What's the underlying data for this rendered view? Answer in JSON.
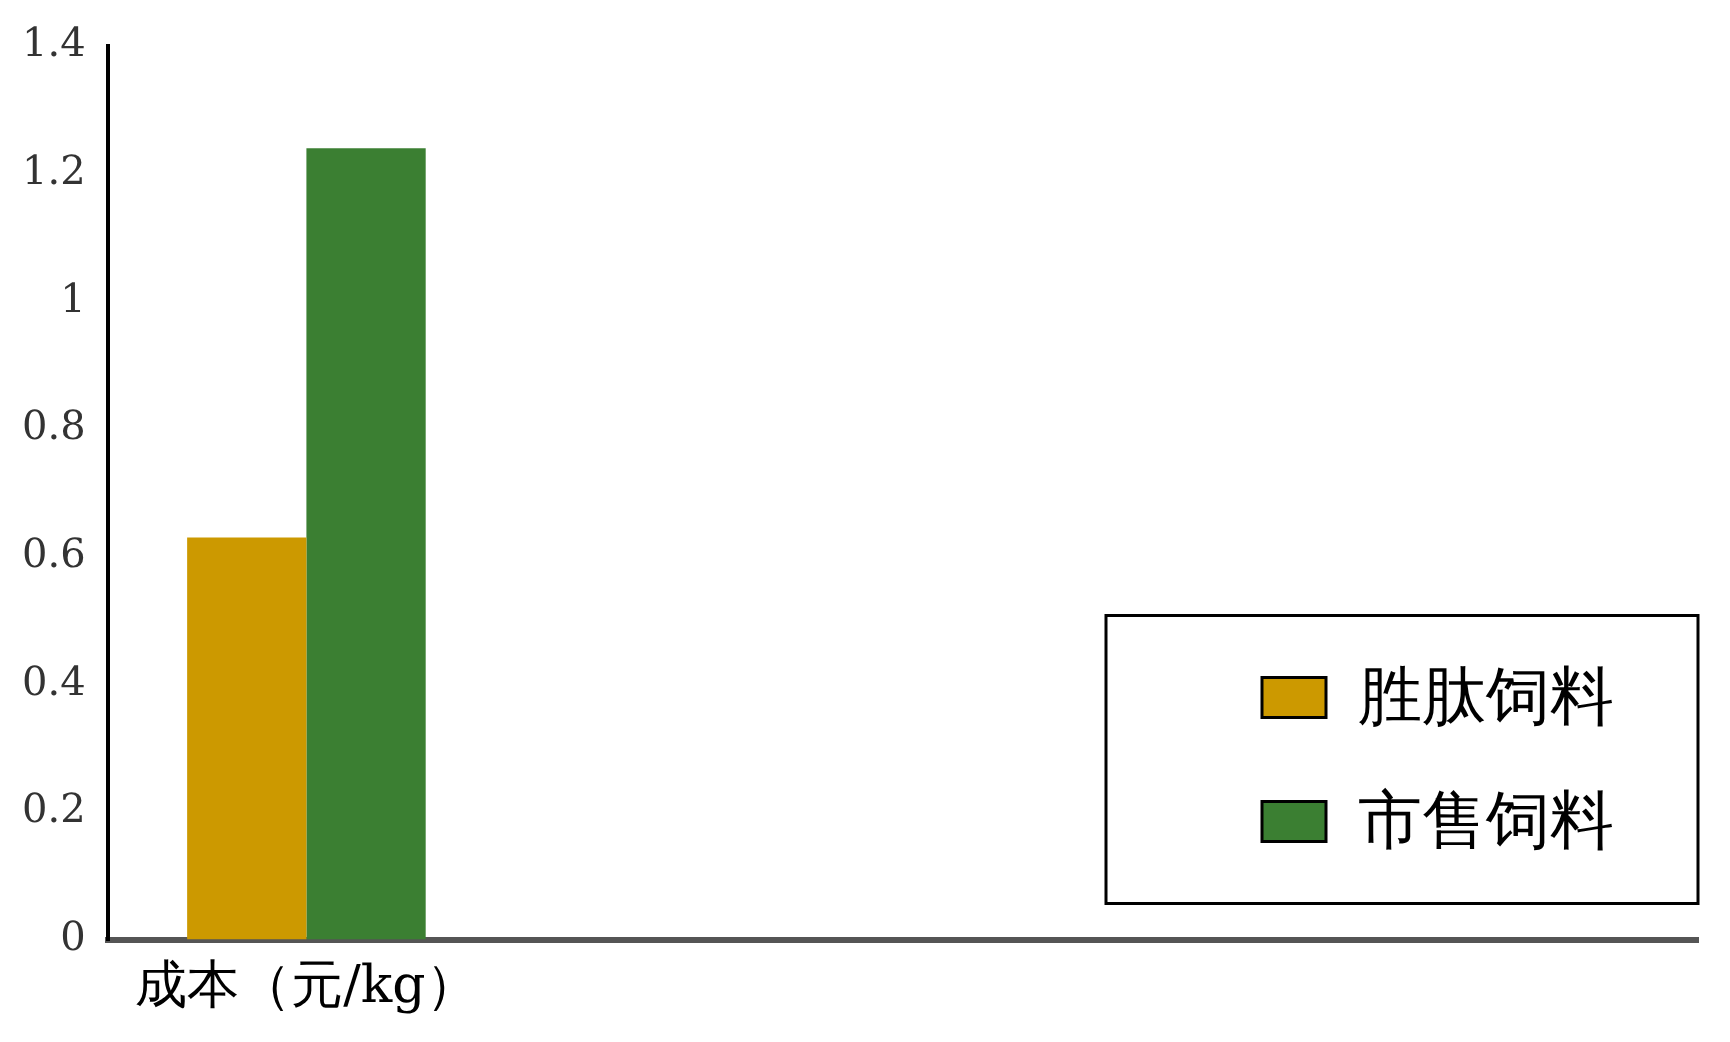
{
  "chart_data": {
    "type": "bar",
    "categories": [
      "成本（元/kg）",
      null,
      null,
      null
    ],
    "series": [
      {
        "name": "胜肽饲料",
        "color": "#cc9900",
        "values": [
          0.63,
          null,
          null,
          null
        ]
      },
      {
        "name": "市售饲料",
        "color": "#3b7f32",
        "values": [
          1.24,
          null,
          null,
          null
        ]
      }
    ],
    "ylim": [
      0,
      1.4
    ],
    "yticks": [
      0,
      0.2,
      0.4,
      0.6,
      0.8,
      1,
      1.2,
      1.4
    ],
    "grid": false,
    "legend": "bottom right"
  }
}
